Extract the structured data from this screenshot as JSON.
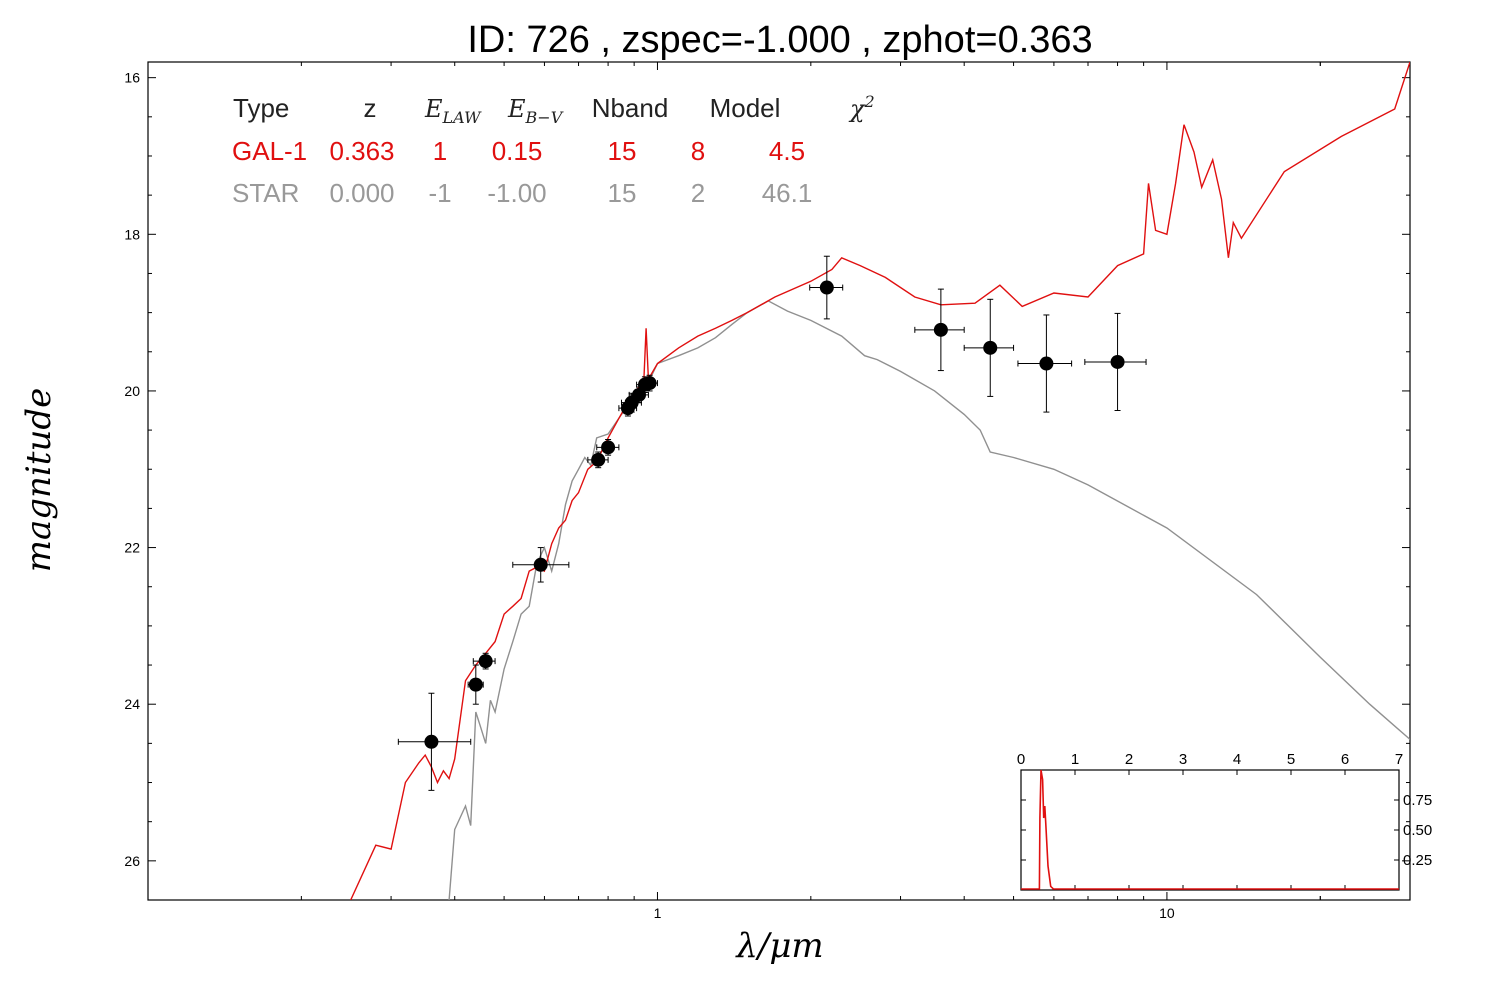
{
  "title": "ID:  726   , zspec=-1.000 , zphot=0.363",
  "xlabel": "λ/μm",
  "ylabel": "magnitude",
  "colors": {
    "galaxy": "#e01010",
    "star": "#909090",
    "points": "#000000"
  },
  "table": {
    "headers": [
      "Type",
      "z",
      "E",
      "E",
      "Nband",
      "Model",
      "χ"
    ],
    "header_subscripts": [
      "",
      "",
      "LAW",
      "B−V",
      "",
      "",
      ""
    ],
    "header_superscripts": [
      "",
      "",
      "",
      "",
      "",
      "",
      "2"
    ],
    "rows": [
      {
        "color": "#e01010",
        "cells": [
          "GAL-1",
          "0.363",
          "1",
          "0.15",
          "15",
          "8",
          "4.5"
        ]
      },
      {
        "color": "#999999",
        "cells": [
          "STAR",
          "0.000",
          "-1",
          "-1.00",
          "15",
          "2",
          "46.1"
        ]
      }
    ]
  },
  "chart_data": [
    {
      "type": "scatter",
      "title": "ID:  726   , zspec=-1.000 , zphot=0.363",
      "xlabel": "λ/μm",
      "ylabel": "magnitude",
      "xscale": "log",
      "xlim": [
        0.1,
        30
      ],
      "ylim": [
        26.5,
        15.8
      ],
      "yaxis_inverted": true,
      "x_ticks": [
        1,
        10
      ],
      "y_ticks": [
        16,
        18,
        20,
        22,
        24,
        26
      ],
      "photometry": [
        {
          "x": 0.36,
          "y": 24.48,
          "xerr": [
            0.31,
            0.43
          ],
          "yerr": 0.62
        },
        {
          "x": 0.44,
          "y": 23.75,
          "xerr": [
            0.425,
            0.455
          ],
          "yerr": 0.25
        },
        {
          "x": 0.46,
          "y": 23.45,
          "xerr": [
            0.435,
            0.48
          ],
          "yerr": 0.1
        },
        {
          "x": 0.59,
          "y": 22.22,
          "xerr": [
            0.52,
            0.67
          ],
          "yerr": 0.22
        },
        {
          "x": 0.765,
          "y": 20.88,
          "xerr": [
            0.73,
            0.8
          ],
          "yerr": 0.1
        },
        {
          "x": 0.8,
          "y": 20.72,
          "xerr": [
            0.76,
            0.84
          ],
          "yerr": 0.1
        },
        {
          "x": 0.875,
          "y": 20.22,
          "xerr": [
            0.84,
            0.91
          ],
          "yerr": 0.1
        },
        {
          "x": 0.89,
          "y": 20.15,
          "xerr": [
            0.85,
            0.93
          ],
          "yerr": 0.12
        },
        {
          "x": 0.92,
          "y": 20.05,
          "xerr": [
            0.88,
            0.96
          ],
          "yerr": 0.1
        },
        {
          "x": 0.945,
          "y": 19.92,
          "xerr": [
            0.91,
            0.98
          ],
          "yerr": 0.1
        },
        {
          "x": 0.965,
          "y": 19.9,
          "xerr": [
            0.93,
            1.0
          ],
          "yerr": 0.1
        },
        {
          "x": 2.15,
          "y": 18.68,
          "xerr": [
            1.99,
            2.31
          ],
          "yerr": 0.4
        },
        {
          "x": 3.6,
          "y": 19.22,
          "xerr": [
            3.2,
            4.0
          ],
          "yerr": 0.52
        },
        {
          "x": 4.5,
          "y": 19.45,
          "xerr": [
            4.0,
            5.0
          ],
          "yerr": 0.62
        },
        {
          "x": 5.8,
          "y": 19.65,
          "xerr": [
            5.1,
            6.5
          ],
          "yerr": 0.62
        },
        {
          "x": 8.0,
          "y": 19.63,
          "xerr": [
            6.9,
            9.1
          ],
          "yerr": 0.62
        }
      ],
      "series": [
        {
          "name": "GAL-1",
          "color": "#e01010",
          "points": [
            [
              0.25,
              26.5
            ],
            [
              0.28,
              25.8
            ],
            [
              0.3,
              25.85
            ],
            [
              0.32,
              25.0
            ],
            [
              0.34,
              24.75
            ],
            [
              0.35,
              24.65
            ],
            [
              0.36,
              24.8
            ],
            [
              0.37,
              25.0
            ],
            [
              0.38,
              24.85
            ],
            [
              0.39,
              24.95
            ],
            [
              0.4,
              24.7
            ],
            [
              0.42,
              23.7
            ],
            [
              0.44,
              23.5
            ],
            [
              0.46,
              23.35
            ],
            [
              0.48,
              23.2
            ],
            [
              0.5,
              22.85
            ],
            [
              0.52,
              22.75
            ],
            [
              0.54,
              22.65
            ],
            [
              0.56,
              22.3
            ],
            [
              0.58,
              22.25
            ],
            [
              0.6,
              22.3
            ],
            [
              0.62,
              21.95
            ],
            [
              0.64,
              21.75
            ],
            [
              0.66,
              21.65
            ],
            [
              0.68,
              21.4
            ],
            [
              0.7,
              21.3
            ],
            [
              0.73,
              21.0
            ],
            [
              0.76,
              20.9
            ],
            [
              0.8,
              20.6
            ],
            [
              0.84,
              20.35
            ],
            [
              0.88,
              20.12
            ],
            [
              0.92,
              19.95
            ],
            [
              0.94,
              19.88
            ],
            [
              0.95,
              19.2
            ],
            [
              0.96,
              19.85
            ],
            [
              1.0,
              19.65
            ],
            [
              1.1,
              19.45
            ],
            [
              1.2,
              19.3
            ],
            [
              1.3,
              19.2
            ],
            [
              1.4,
              19.1
            ],
            [
              1.5,
              19.0
            ],
            [
              1.7,
              18.8
            ],
            [
              2.0,
              18.6
            ],
            [
              2.2,
              18.45
            ],
            [
              2.3,
              18.3
            ],
            [
              2.5,
              18.4
            ],
            [
              2.8,
              18.55
            ],
            [
              3.2,
              18.8
            ],
            [
              3.6,
              18.9
            ],
            [
              4.2,
              18.88
            ],
            [
              4.7,
              18.65
            ],
            [
              5.2,
              18.92
            ],
            [
              6.0,
              18.75
            ],
            [
              7.0,
              18.8
            ],
            [
              8.0,
              18.4
            ],
            [
              9.0,
              18.25
            ],
            [
              9.2,
              17.35
            ],
            [
              9.5,
              17.95
            ],
            [
              10.0,
              18.0
            ],
            [
              10.4,
              17.35
            ],
            [
              10.8,
              16.6
            ],
            [
              11.3,
              16.95
            ],
            [
              11.7,
              17.4
            ],
            [
              12.3,
              17.05
            ],
            [
              12.8,
              17.55
            ],
            [
              13.2,
              18.3
            ],
            [
              13.5,
              17.85
            ],
            [
              14.0,
              18.05
            ],
            [
              17.0,
              17.2
            ],
            [
              22.0,
              16.75
            ],
            [
              28.0,
              16.4
            ],
            [
              30.0,
              15.8
            ]
          ]
        },
        {
          "name": "STAR",
          "color": "#909090",
          "points": [
            [
              0.39,
              26.5
            ],
            [
              0.4,
              25.6
            ],
            [
              0.42,
              25.3
            ],
            [
              0.43,
              25.55
            ],
            [
              0.44,
              24.1
            ],
            [
              0.45,
              24.3
            ],
            [
              0.46,
              24.5
            ],
            [
              0.47,
              23.95
            ],
            [
              0.48,
              24.1
            ],
            [
              0.5,
              23.55
            ],
            [
              0.52,
              23.2
            ],
            [
              0.54,
              22.85
            ],
            [
              0.56,
              22.75
            ],
            [
              0.58,
              22.2
            ],
            [
              0.6,
              22.0
            ],
            [
              0.62,
              22.3
            ],
            [
              0.64,
              21.95
            ],
            [
              0.66,
              21.45
            ],
            [
              0.68,
              21.15
            ],
            [
              0.7,
              21.0
            ],
            [
              0.72,
              20.85
            ],
            [
              0.74,
              20.95
            ],
            [
              0.76,
              20.6
            ],
            [
              0.8,
              20.55
            ],
            [
              0.85,
              20.3
            ],
            [
              0.9,
              20.1
            ],
            [
              0.95,
              19.95
            ],
            [
              1.0,
              19.65
            ],
            [
              1.1,
              19.55
            ],
            [
              1.2,
              19.45
            ],
            [
              1.3,
              19.32
            ],
            [
              1.4,
              19.15
            ],
            [
              1.5,
              19.0
            ],
            [
              1.65,
              18.85
            ],
            [
              1.8,
              18.98
            ],
            [
              2.0,
              19.1
            ],
            [
              2.3,
              19.3
            ],
            [
              2.55,
              19.55
            ],
            [
              2.7,
              19.6
            ],
            [
              3.0,
              19.75
            ],
            [
              3.5,
              20.0
            ],
            [
              4.0,
              20.3
            ],
            [
              4.3,
              20.5
            ],
            [
              4.5,
              20.78
            ],
            [
              5.0,
              20.85
            ],
            [
              6.0,
              21.0
            ],
            [
              7.0,
              21.2
            ],
            [
              10.0,
              21.75
            ],
            [
              15.0,
              22.6
            ],
            [
              20.0,
              23.4
            ],
            [
              25.0,
              24.0
            ],
            [
              30.0,
              24.45
            ]
          ]
        }
      ]
    },
    {
      "type": "line",
      "xlim": [
        0,
        7
      ],
      "ylim": [
        0,
        1.0
      ],
      "x_ticks": [
        0,
        1,
        2,
        3,
        4,
        5,
        6,
        7
      ],
      "y_ticks": [
        0.25,
        0.5,
        0.75
      ],
      "series": [
        {
          "color": "#e01010",
          "points": [
            [
              0,
              0
            ],
            [
              0.34,
              0
            ],
            [
              0.35,
              0.6
            ],
            [
              0.37,
              1.0
            ],
            [
              0.4,
              0.92
            ],
            [
              0.42,
              0.6
            ],
            [
              0.44,
              0.7
            ],
            [
              0.46,
              0.55
            ],
            [
              0.5,
              0.2
            ],
            [
              0.55,
              0.03
            ],
            [
              0.6,
              0
            ],
            [
              7,
              0
            ]
          ]
        }
      ]
    }
  ]
}
